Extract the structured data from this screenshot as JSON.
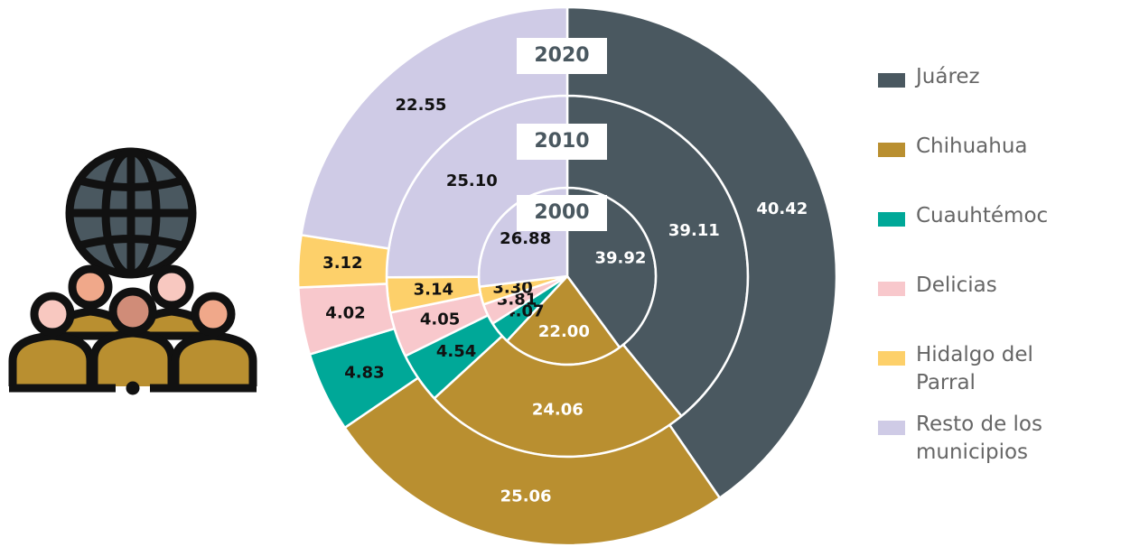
{
  "chart_data": {
    "type": "nested-donut",
    "categories": [
      "Juárez",
      "Chihuahua",
      "Cuauhtémoc",
      "Delicias",
      "Hidalgo del Parral",
      "Resto de los municipios"
    ],
    "colors": [
      "#4a5860",
      "#b98f30",
      "#00a898",
      "#f8c8cc",
      "#fdd06a",
      "#cfcbe6"
    ],
    "series": [
      {
        "name": "2000",
        "values": [
          39.92,
          22.0,
          4.07,
          3.81,
          3.3,
          26.88
        ],
        "value_labels": [
          "39.92",
          "22.00",
          "4.07",
          "3.81",
          "3.30",
          "26.88"
        ]
      },
      {
        "name": "2010",
        "values": [
          39.11,
          24.06,
          4.54,
          4.05,
          3.14,
          25.1
        ],
        "value_labels": [
          "39.11",
          "24.06",
          "4.54",
          "4.05",
          "3.14",
          "25.10"
        ]
      },
      {
        "name": "2020",
        "values": [
          40.42,
          25.06,
          4.83,
          4.02,
          3.12,
          22.55
        ],
        "value_labels": [
          "40.42",
          "25.06",
          "4.83",
          "4.02",
          "3.12",
          "22.55"
        ]
      }
    ],
    "legend": "right"
  }
}
